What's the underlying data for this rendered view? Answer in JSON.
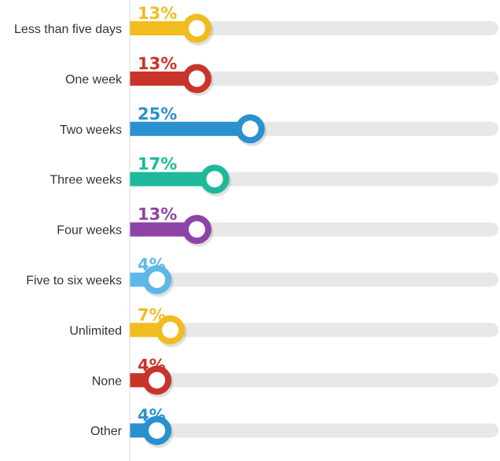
{
  "chart_data": {
    "type": "bar",
    "orientation": "horizontal",
    "categories": [
      "Less than five days",
      "One week",
      "Two weeks",
      "Three weeks",
      "Four weeks",
      "Five to six weeks",
      "Unlimited",
      "None",
      "Other"
    ],
    "values": [
      13,
      13,
      25,
      17,
      13,
      4,
      7,
      4,
      4
    ],
    "value_labels": [
      "13%",
      "13%",
      "25%",
      "17%",
      "13%",
      "4%",
      "7%",
      "4%",
      "4%"
    ],
    "colors": [
      "#F2BC1F",
      "#C9342A",
      "#2B90CF",
      "#1DB99A",
      "#8E44A6",
      "#5DB8E8",
      "#F2BC1F",
      "#C9342A",
      "#2B90CF"
    ],
    "track_color": "#E8E8E8",
    "title": "",
    "xlabel": "",
    "ylabel": "",
    "xlim": [
      0,
      100
    ],
    "grid": false,
    "legend": "none"
  }
}
